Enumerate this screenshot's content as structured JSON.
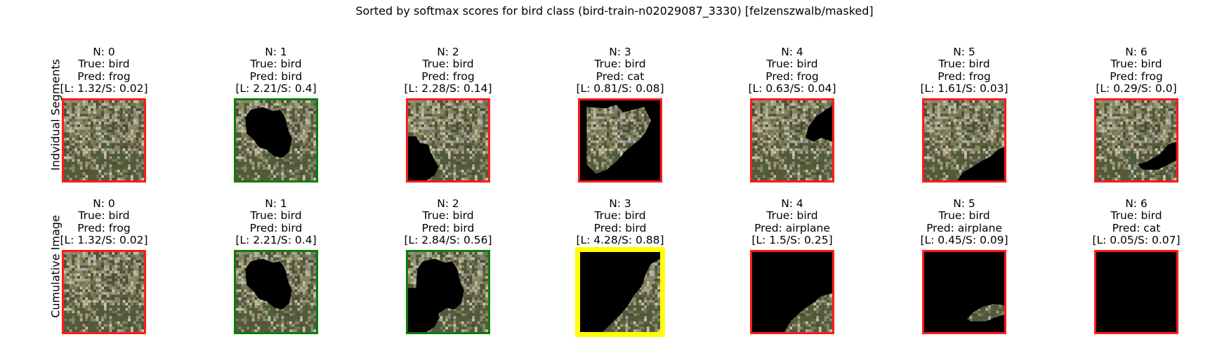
{
  "suptitle": "Sorted by softmax scores for bird class (bird-train-n02029087_3330) [felzenszwalb/masked]",
  "row_labels": [
    "Indvidual Segments",
    "Cumulative Image"
  ],
  "colors": {
    "red": "#ff1a1a",
    "green": "#0a7d0a",
    "yellow": "#ffff00",
    "mask": "#000000"
  },
  "rows": [
    {
      "name": "individual",
      "panels": [
        {
          "n": "N: 0",
          "true_label": "True: bird",
          "pred": "Pred: frog",
          "scores": "[L: 1.32/S: 0.02]",
          "border": "red",
          "mask": "none"
        },
        {
          "n": "N: 1",
          "true_label": "True: bird",
          "pred": "Pred: bird",
          "scores": "[L: 2.21/S: 0.4]",
          "border": "green",
          "mask": "center-blob"
        },
        {
          "n": "N: 2",
          "true_label": "True: bird",
          "pred": "Pred: frog",
          "scores": "[L: 2.28/S: 0.14]",
          "border": "red",
          "mask": "bottom-left"
        },
        {
          "n": "N: 3",
          "true_label": "True: bird",
          "pred": "Pred: cat",
          "scores": "[L: 0.81/S: 0.08]",
          "border": "red",
          "mask": "frame"
        },
        {
          "n": "N: 4",
          "true_label": "True: bird",
          "pred": "Pred: frog",
          "scores": "[L: 0.63/S: 0.04]",
          "border": "red",
          "mask": "right-upper"
        },
        {
          "n": "N: 5",
          "true_label": "True: bird",
          "pred": "Pred: frog",
          "scores": "[L: 1.61/S: 0.03]",
          "border": "red",
          "mask": "bottom-right"
        },
        {
          "n": "N: 6",
          "true_label": "True: bird",
          "pred": "Pred: frog",
          "scores": "[L: 0.29/S: 0.0]",
          "border": "red",
          "mask": "right-mid"
        }
      ]
    },
    {
      "name": "cumulative",
      "panels": [
        {
          "n": "N: 0",
          "true_label": "True: bird",
          "pred": "Pred: frog",
          "scores": "[L: 1.32/S: 0.02]",
          "border": "red",
          "mask": "none"
        },
        {
          "n": "N: 1",
          "true_label": "True: bird",
          "pred": "Pred: bird",
          "scores": "[L: 2.21/S: 0.4]",
          "border": "green",
          "mask": "center-blob"
        },
        {
          "n": "N: 2",
          "true_label": "True: bird",
          "pred": "Pred: bird",
          "scores": "[L: 2.84/S: 0.56]",
          "border": "green",
          "mask": "cum-2"
        },
        {
          "n": "N: 3",
          "true_label": "True: bird",
          "pred": "Pred: bird",
          "scores": "[L: 4.28/S: 0.88]",
          "border": "yellow",
          "mask": "cum-3"
        },
        {
          "n": "N: 4",
          "true_label": "True: bird",
          "pred": "Pred: airplane",
          "scores": "[L: 1.5/S: 0.25]",
          "border": "red",
          "mask": "cum-4"
        },
        {
          "n": "N: 5",
          "true_label": "True: bird",
          "pred": "Pred: airplane",
          "scores": "[L: 0.45/S: 0.09]",
          "border": "red",
          "mask": "cum-5"
        },
        {
          "n": "N: 6",
          "true_label": "True: bird",
          "pred": "Pred: cat",
          "scores": "[L: 0.05/S: 0.07]",
          "border": "red",
          "mask": "all"
        }
      ]
    }
  ]
}
